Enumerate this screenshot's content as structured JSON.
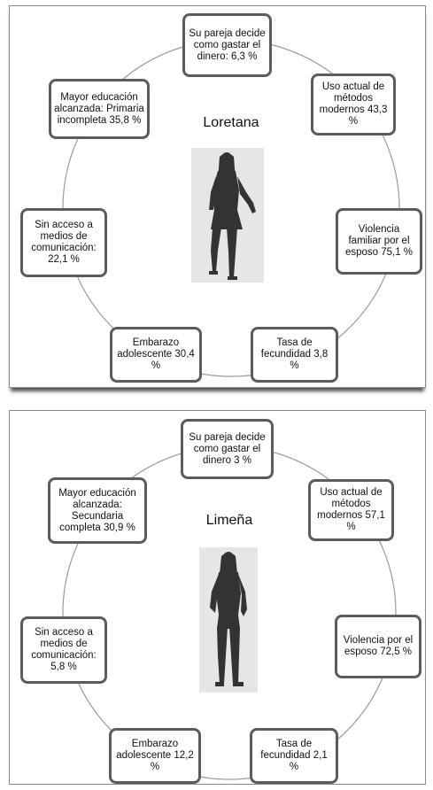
{
  "panels": [
    {
      "title": "Loretana",
      "nodes": {
        "pareja": "Su pareja decide como gastar el dinero: 6,3 %",
        "uso": "Uso actual de métodos modernos 43,3 %",
        "violencia": "Violencia familiar por el esposo 75,1 %",
        "tasa": "Tasa de fecundidad 3,8 %",
        "embarazo": "Embarazo adolescente 30,4 %",
        "acceso": "Sin acceso a medios de comunicación: 22,1 %",
        "educacion": "Mayor educación alcanzada: Primaria incompleta 35,8 %"
      }
    },
    {
      "title": "Limeña",
      "nodes": {
        "pareja": "Su pareja decide como gastar el dinero 3 %",
        "uso": "Uso actual de métodos modernos 57,1 %",
        "violencia": "Violencia por el esposo 72,5 %",
        "tasa": "Tasa de fecundidad 2,1 %",
        "embarazo": "Embarazo adolescente 12,2 %",
        "acceso": "Sin acceso a medios de comunicación: 5,8 %",
        "educacion": "Mayor educación alcanzada: Secundaria completa 30,9 %"
      }
    }
  ]
}
